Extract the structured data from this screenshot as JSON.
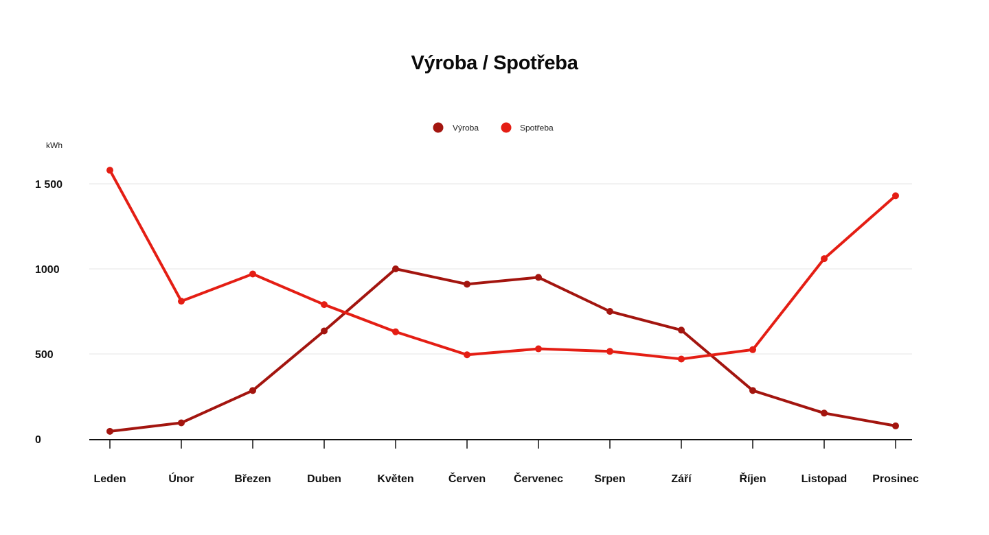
{
  "chart_data": {
    "type": "line",
    "title": "Výroba / Spotřeba",
    "ylabel": "kWh",
    "xlabel": "",
    "categories": [
      "Leden",
      "Únor",
      "Březen",
      "Duben",
      "Květen",
      "Červen",
      "Červenec",
      "Srpen",
      "Září",
      "Říjen",
      "Listopad",
      "Prosinec"
    ],
    "ylim": [
      0,
      1500
    ],
    "yticks": [
      0,
      500,
      1000,
      1500
    ],
    "ytick_labels": [
      "0",
      "500",
      "1000",
      "1 500"
    ],
    "grid": true,
    "legend_position": "top-center",
    "series": [
      {
        "name": "Výroba",
        "color": "#a3150f",
        "values": [
          45,
          95,
          285,
          635,
          1000,
          910,
          950,
          750,
          640,
          285,
          152,
          77
        ]
      },
      {
        "name": "Spotřeba",
        "color": "#e41e14",
        "values": [
          1580,
          810,
          970,
          790,
          630,
          495,
          530,
          515,
          470,
          525,
          1060,
          1430
        ]
      }
    ]
  }
}
